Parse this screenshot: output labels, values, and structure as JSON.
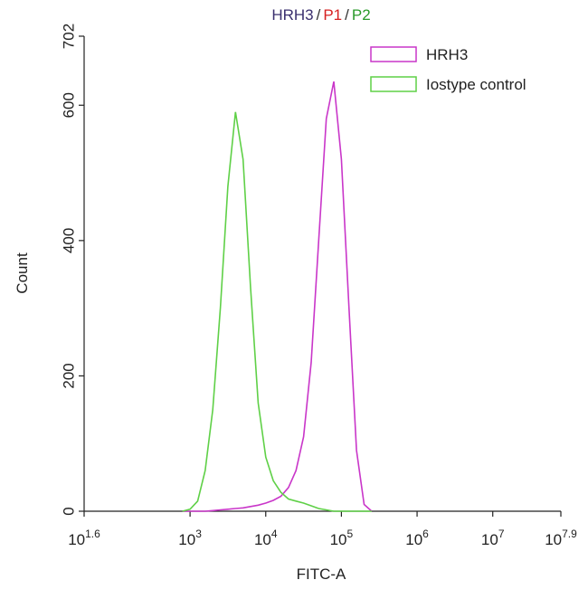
{
  "chart_data": {
    "type": "line",
    "title_parts": [
      {
        "text": "HRH3",
        "color": "#3a2f6e"
      },
      {
        "text": "/",
        "color": "#333333"
      },
      {
        "text": "P1",
        "color": "#d62020"
      },
      {
        "text": "/",
        "color": "#333333"
      },
      {
        "text": "P2",
        "color": "#2a9a2a"
      }
    ],
    "x_label": "FITC-A",
    "y_label": "Count",
    "log_x": true,
    "xlim": [
      39.81,
      79432823
    ],
    "xticks": [
      {
        "value": 39.81,
        "label": "10",
        "power": "1.6"
      },
      {
        "value": 1000,
        "label": "10",
        "power": "3"
      },
      {
        "value": 10000,
        "label": "10",
        "power": "4"
      },
      {
        "value": 100000,
        "label": "10",
        "power": "5"
      },
      {
        "value": 1000000,
        "label": "10",
        "power": "6"
      },
      {
        "value": 10000000,
        "label": "10",
        "power": "7"
      },
      {
        "value": 79432823,
        "label": "10",
        "power": "7.9"
      }
    ],
    "ylim": [
      0,
      702
    ],
    "yticks": [
      0,
      200,
      400,
      600,
      702
    ],
    "grid": false,
    "legend": "top-right",
    "x": [
      794,
      1000,
      1259,
      1585,
      1995,
      2512,
      3162,
      3981,
      5012,
      6310,
      7943,
      10000,
      12589,
      15849,
      19953,
      25119,
      31623,
      39811,
      50119,
      63096,
      79433,
      100000,
      125893,
      158489,
      199526,
      251189
    ],
    "series": [
      {
        "name": "HRH3",
        "color": "#c936c9",
        "values": [
          0,
          0,
          0,
          0,
          1,
          2,
          3,
          4,
          5,
          7,
          9,
          12,
          16,
          22,
          35,
          60,
          110,
          220,
          400,
          580,
          635,
          520,
          300,
          90,
          10,
          0
        ]
      },
      {
        "name": "Iostype control",
        "color": "#5fd047",
        "values": [
          0,
          3,
          15,
          60,
          150,
          300,
          480,
          590,
          520,
          330,
          160,
          80,
          45,
          28,
          18,
          15,
          12,
          8,
          4,
          2,
          0,
          0,
          0,
          0,
          0,
          0
        ]
      }
    ]
  }
}
